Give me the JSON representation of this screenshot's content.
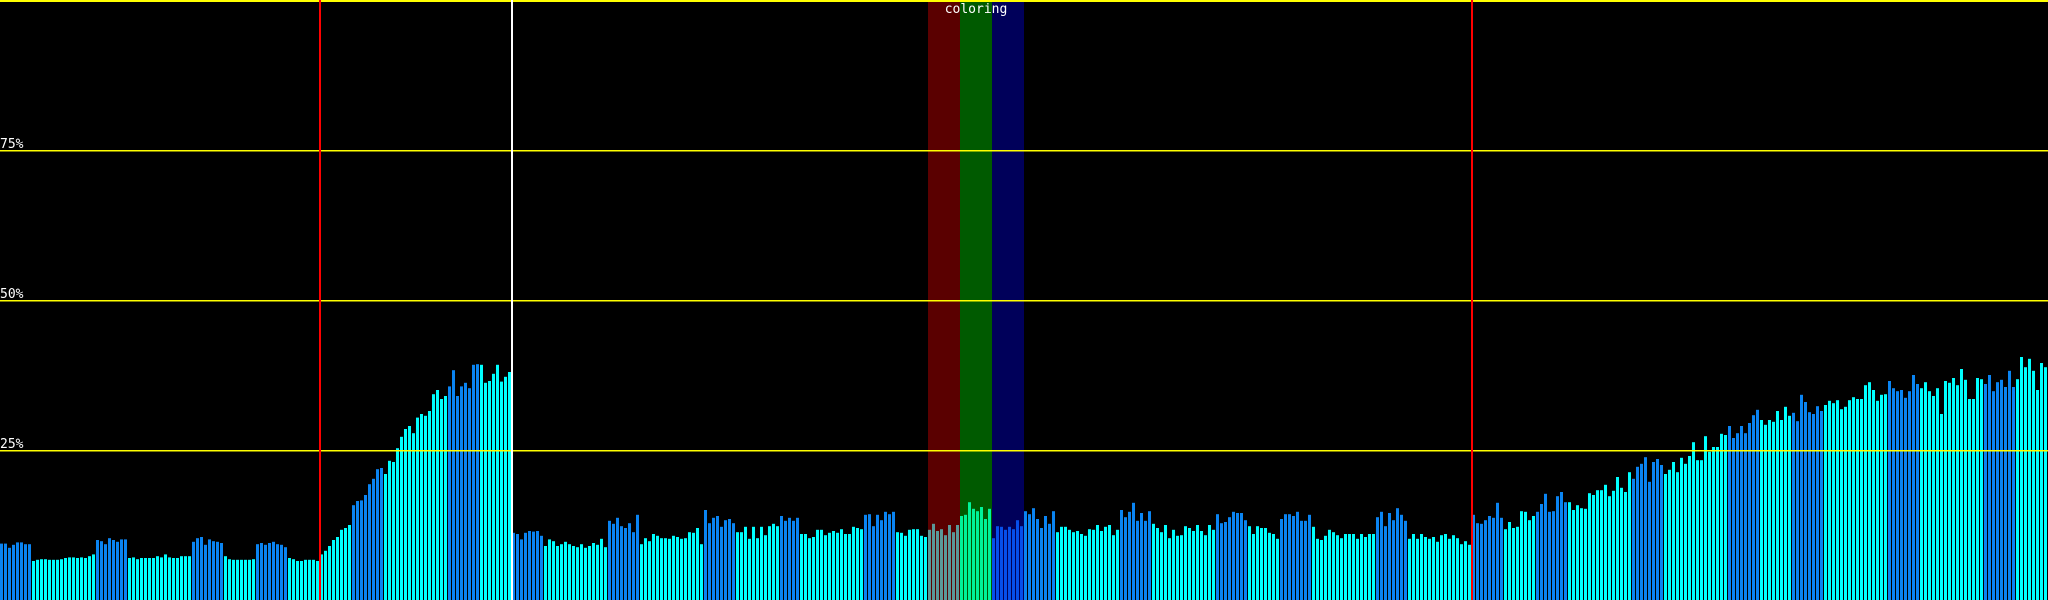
{
  "chart_data": {
    "type": "bar",
    "title": "",
    "xlabel": "",
    "ylabel": "",
    "ylim": [
      0,
      100
    ],
    "y_unit": "%",
    "yticks": [
      {
        "value": 25,
        "label": "25%"
      },
      {
        "value": 50,
        "label": "50%"
      },
      {
        "value": 75,
        "label": "75%"
      }
    ],
    "grid": true,
    "grid_color": "#ffff00",
    "background": "#000000",
    "bar_colors": {
      "blue": "#0a84f2",
      "cyan": "#00ffff"
    },
    "markers": [
      {
        "bar_index": 80,
        "color": "#ff0000"
      },
      {
        "bar_index": 128,
        "color": "#ffffff"
      },
      {
        "bar_index": 368,
        "color": "#ff0000"
      }
    ],
    "bands": {
      "label": "coloring",
      "items": [
        {
          "from_bar": 232,
          "to_bar": 240,
          "color": "rgba(225,0,0,0.4)"
        },
        {
          "from_bar": 240,
          "to_bar": 248,
          "color": "rgba(0,225,0,0.4)"
        },
        {
          "from_bar": 248,
          "to_bar": 256,
          "color": "rgba(0,0,225,0.4)"
        }
      ]
    },
    "segments": [
      {
        "color": "blue",
        "values": [
          9.4,
          9.4,
          8.7,
          9.2,
          9.6,
          9.6,
          9.3,
          9.3
        ]
      },
      {
        "color": "cyan",
        "values": [
          6.5,
          6.7,
          6.8,
          6.8,
          6.7,
          6.7,
          6.7,
          6.8,
          7.0,
          7.1,
          7.1,
          7.0,
          7.1,
          7.0,
          7.3,
          7.6
        ]
      },
      {
        "color": "blue",
        "values": [
          10.0,
          9.8,
          9.3,
          10.3,
          10.0,
          9.7,
          10.1,
          10.1
        ]
      },
      {
        "color": "cyan",
        "values": [
          7.0,
          7.1,
          6.8,
          7.0,
          7.0,
          7.0,
          7.0,
          7.3,
          7.1,
          7.6,
          7.1,
          7.0,
          7.0,
          7.3,
          7.3,
          7.3
        ]
      },
      {
        "color": "blue",
        "values": [
          9.7,
          10.3,
          10.5,
          9.2,
          10.1,
          9.8,
          9.7,
          9.5
        ]
      },
      {
        "color": "cyan",
        "values": [
          7.3,
          6.8,
          6.7,
          6.7,
          6.7,
          6.7,
          6.7,
          6.8
        ]
      },
      {
        "color": "blue",
        "values": [
          9.3,
          9.5,
          9.2,
          9.5,
          9.7,
          9.3,
          9.2,
          8.8
        ]
      },
      {
        "color": "cyan",
        "values": [
          7.0,
          6.8,
          6.5,
          6.5,
          6.7,
          6.7,
          6.7,
          6.5,
          7.6,
          8.2,
          9.0,
          10.0,
          10.5,
          11.7,
          12.0,
          12.5
        ]
      },
      {
        "color": "blue",
        "values": [
          15.8,
          16.5,
          16.6,
          17.5,
          19.3,
          20.2,
          21.8,
          22.0
        ]
      },
      {
        "color": "cyan",
        "values": [
          21.0,
          23.2,
          23.0,
          25.3,
          27.2,
          28.5,
          29.0,
          27.8,
          30.4,
          31.0,
          30.7,
          31.5,
          34.3,
          35.0,
          33.5,
          34.0
        ]
      },
      {
        "color": "blue",
        "values": [
          35.6,
          38.3,
          34.0,
          35.6,
          36.2,
          35.3,
          39.2,
          39.3
        ]
      },
      {
        "color": "cyan",
        "values": [
          39.2,
          36.2,
          36.5,
          37.7,
          39.2,
          36.4,
          37.2,
          38.0
        ]
      },
      {
        "color": "blue",
        "values": [
          11.2,
          11.0,
          10.1,
          11.2,
          11.5,
          11.4,
          11.5,
          10.7
        ]
      },
      {
        "color": "cyan",
        "values": [
          9.0,
          10.1,
          9.8,
          9.0,
          9.3,
          9.7,
          9.3,
          9.0,
          8.8,
          9.3,
          8.7,
          9.0,
          9.5,
          9.2,
          10.2,
          8.8
        ]
      },
      {
        "color": "blue",
        "values": [
          13.2,
          12.7,
          13.7,
          12.3,
          12.0,
          12.8,
          11.3,
          14.2
        ]
      },
      {
        "color": "cyan",
        "values": [
          9.3,
          10.3,
          9.8,
          11.0,
          10.7,
          10.3,
          10.3,
          10.2,
          10.7,
          10.5,
          10.2,
          10.3,
          11.3,
          11.2,
          12.0,
          9.3
        ]
      },
      {
        "color": "blue",
        "values": [
          15.0,
          12.8,
          13.7,
          14.0,
          12.2,
          13.3,
          13.5,
          12.8
        ]
      },
      {
        "color": "cyan",
        "values": [
          11.3,
          11.3,
          12.2,
          10.2,
          12.2,
          10.3,
          12.2,
          10.8,
          12.3,
          12.7,
          12.3
        ]
      },
      {
        "color": "blue",
        "values": [
          14.0,
          13.2,
          13.7,
          13.2,
          13.7
        ]
      },
      {
        "color": "cyan",
        "values": [
          11.0,
          11.0,
          10.3,
          10.5,
          11.7,
          11.7,
          10.8,
          11.2,
          11.5,
          11.2,
          11.8,
          11.0,
          11.0,
          12.2,
          12.0,
          11.8
        ]
      },
      {
        "color": "blue",
        "values": [
          14.2,
          14.3,
          12.3,
          14.2,
          13.3,
          14.7,
          14.3,
          14.7
        ]
      },
      {
        "color": "cyan",
        "values": [
          11.3,
          11.2,
          10.7,
          11.7,
          11.8,
          11.8,
          10.7,
          10.5,
          11.7,
          12.7,
          11.5,
          11.8,
          10.8,
          12.5,
          11.3,
          12.5,
          14.0,
          14.2,
          16.3,
          15.2,
          14.8,
          15.5,
          13.5,
          15.2
        ]
      },
      {
        "color": "blue",
        "values": [
          10.3,
          12.3,
          12.2,
          11.7,
          12.2,
          11.8,
          13.3,
          12.3,
          14.8,
          14.3,
          15.3,
          13.5,
          12.0,
          14.0,
          12.7,
          14.8
        ]
      },
      {
        "color": "cyan",
        "values": [
          11.3,
          12.2,
          12.2,
          11.7,
          11.3,
          11.5,
          11.0,
          10.7,
          11.8,
          11.7,
          12.5,
          11.5,
          12.2,
          12.5,
          10.8,
          11.7
        ]
      },
      {
        "color": "blue",
        "values": [
          15.0,
          13.8,
          14.7,
          16.2,
          13.2,
          14.5,
          13.2,
          14.8
        ]
      },
      {
        "color": "cyan",
        "values": [
          12.7,
          12.0,
          11.3,
          12.5,
          10.3,
          11.7,
          10.7,
          10.8,
          12.3,
          12.0,
          11.5,
          12.5,
          11.5,
          10.8,
          12.5,
          11.7
        ]
      },
      {
        "color": "blue",
        "values": [
          14.3,
          12.8,
          13.0,
          13.8,
          14.7,
          14.5,
          14.5,
          13.3
        ]
      },
      {
        "color": "cyan",
        "values": [
          12.3,
          11.0,
          12.3,
          12.0,
          12.0,
          11.2,
          11.0,
          10.2
        ]
      },
      {
        "color": "blue",
        "values": [
          13.5,
          14.3,
          14.3,
          14.0,
          14.7,
          13.2,
          13.2,
          14.2
        ]
      },
      {
        "color": "cyan",
        "values": [
          12.2,
          10.2,
          10.0,
          10.7,
          11.7,
          11.3,
          10.8,
          10.3,
          11.0,
          11.0,
          11.0,
          10.2,
          11.0,
          10.5,
          11.0,
          11.0
        ]
      },
      {
        "color": "blue",
        "values": [
          13.8,
          14.7,
          12.3,
          14.5,
          13.3,
          15.3,
          14.2,
          13.2
        ]
      },
      {
        "color": "cyan",
        "values": [
          10.2,
          11.0,
          10.2,
          11.0,
          10.5,
          10.2,
          10.5,
          9.7,
          10.8,
          11.0,
          10.2,
          10.8,
          10.3,
          9.3,
          9.8,
          9.2
        ]
      },
      {
        "color": "blue",
        "values": [
          14.2,
          12.8,
          12.7,
          13.3,
          14.0,
          13.7,
          16.2,
          13.7
        ]
      },
      {
        "color": "cyan",
        "values": [
          11.8,
          13.0,
          12.0,
          12.2,
          14.8,
          14.7,
          13.3,
          14.0
        ]
      },
      {
        "color": "blue",
        "values": [
          14.7,
          16.0,
          17.7,
          14.7,
          14.8,
          17.3,
          18.0,
          16.3
        ]
      },
      {
        "color": "cyan",
        "values": [
          16.3,
          15.0,
          15.8,
          15.3,
          15.2,
          17.8,
          17.5,
          18.3,
          18.3,
          19.2,
          17.3,
          18.2,
          20.5,
          18.7,
          18.0,
          21.3
        ]
      },
      {
        "color": "blue",
        "values": [
          20.2,
          22.2,
          22.7,
          23.8,
          19.7,
          23.0,
          23.5,
          22.5
        ]
      },
      {
        "color": "cyan",
        "values": [
          21.0,
          21.7,
          23.0,
          21.3,
          23.7,
          22.7,
          24.0,
          26.3,
          23.3,
          23.3,
          27.3,
          24.7,
          25.5,
          25.5,
          27.7,
          27.5
        ]
      },
      {
        "color": "blue",
        "values": [
          29.0,
          27.0,
          27.8,
          29.0,
          27.8,
          29.5,
          30.8,
          31.7
        ]
      },
      {
        "color": "cyan",
        "values": [
          30.0,
          29.2,
          30.0,
          29.7,
          31.5,
          30.0,
          32.2,
          30.7
        ]
      },
      {
        "color": "blue",
        "values": [
          31.2,
          29.8,
          34.2,
          33.0,
          31.3,
          31.0,
          32.3,
          31.5
        ]
      },
      {
        "color": "cyan",
        "values": [
          32.5,
          33.2,
          32.8,
          33.3,
          31.8,
          32.2,
          33.3,
          33.8,
          33.5,
          33.5,
          35.8,
          36.3,
          35.0,
          33.2,
          34.2,
          34.3
        ]
      },
      {
        "color": "blue",
        "values": [
          36.5,
          35.3,
          34.8,
          35.0,
          33.7,
          34.8,
          37.5,
          36.0
        ]
      },
      {
        "color": "cyan",
        "values": [
          35.3,
          36.3,
          34.8,
          34.0,
          35.3,
          31.0,
          36.5,
          36.2,
          37.0,
          35.8,
          38.5,
          36.7,
          33.5,
          33.5,
          37.0,
          36.8
        ]
      },
      {
        "color": "blue",
        "values": [
          36.0,
          37.5,
          34.8,
          36.3,
          36.7,
          35.5,
          38.2,
          35.5
        ]
      },
      {
        "color": "cyan",
        "values": [
          36.8,
          40.5,
          38.8,
          40.2,
          38.2,
          35.0,
          39.5,
          38.8
        ]
      }
    ]
  }
}
